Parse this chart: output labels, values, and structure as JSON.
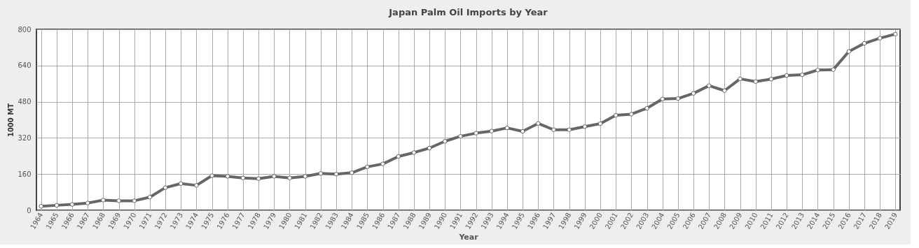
{
  "chart_data": {
    "type": "line",
    "title": "Japan Palm Oil Imports by Year",
    "xlabel": "Year",
    "ylabel": "1000 MT",
    "categories": [
      "1964",
      "1965",
      "1966",
      "1967",
      "1968",
      "1969",
      "1970",
      "1971",
      "1972",
      "1973",
      "1974",
      "1975",
      "1976",
      "1977",
      "1978",
      "1979",
      "1980",
      "1981",
      "1982",
      "1983",
      "1984",
      "1985",
      "1986",
      "1987",
      "1988",
      "1989",
      "1990",
      "1991",
      "1992",
      "1993",
      "1994",
      "1995",
      "1996",
      "1997",
      "1998",
      "1999",
      "2000",
      "2001",
      "2002",
      "2003",
      "2004",
      "2005",
      "2006",
      "2007",
      "2008",
      "2009",
      "2010",
      "2011",
      "2012",
      "2013",
      "2014",
      "2015",
      "2016",
      "2017",
      "2018",
      "2019"
    ],
    "series": [
      {
        "color": "#666666",
        "values": [
          18,
          22,
          26,
          32,
          45,
          42,
          42,
          58,
          100,
          118,
          110,
          153,
          150,
          143,
          140,
          150,
          143,
          150,
          163,
          160,
          166,
          192,
          205,
          238,
          255,
          275,
          305,
          327,
          341,
          350,
          364,
          349,
          384,
          356,
          356,
          370,
          383,
          420,
          425,
          451,
          492,
          494,
          517,
          551,
          529,
          581,
          569,
          580,
          596,
          599,
          620,
          622,
          702,
          738,
          761,
          779
        ]
      }
    ],
    "ylim": [
      0,
      800
    ],
    "yticks": [
      0,
      160,
      320,
      480,
      640,
      800
    ],
    "grid": true,
    "marker": "circle",
    "line_style": "solid"
  }
}
